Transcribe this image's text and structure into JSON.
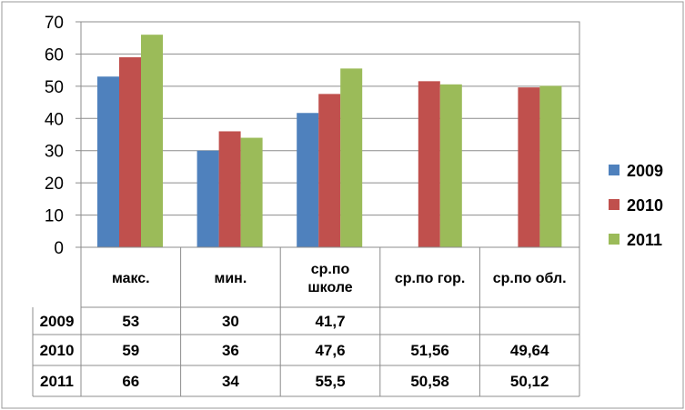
{
  "chart_data": {
    "type": "bar",
    "categories": [
      "макс.",
      "мин.",
      "ср.по школе",
      "ср.по гор.",
      "ср.по обл."
    ],
    "category_lines": [
      [
        "макс."
      ],
      [
        "мин."
      ],
      [
        "ср.по",
        "школе"
      ],
      [
        "ср.по гор."
      ],
      [
        "ср.по обл."
      ]
    ],
    "series": [
      {
        "name": "2009",
        "color": "#4F81BD",
        "values": [
          53,
          30,
          41.7,
          null,
          null
        ],
        "table": [
          "53",
          "30",
          "41,7",
          "",
          ""
        ]
      },
      {
        "name": "2010",
        "color": "#C0504D",
        "values": [
          59,
          36,
          47.6,
          51.56,
          49.64
        ],
        "table": [
          "59",
          "36",
          "47,6",
          "51,56",
          "49,64"
        ]
      },
      {
        "name": "2011",
        "color": "#9BBB59",
        "values": [
          66,
          34,
          55.5,
          50.58,
          50.12
        ],
        "table": [
          "66",
          "34",
          "55,5",
          "50,58",
          "50,12"
        ]
      }
    ],
    "ylim": [
      0,
      70
    ],
    "yticks": [
      0,
      10,
      20,
      30,
      40,
      50,
      60,
      70
    ],
    "grid": true,
    "legend": "right",
    "data_table": true
  }
}
